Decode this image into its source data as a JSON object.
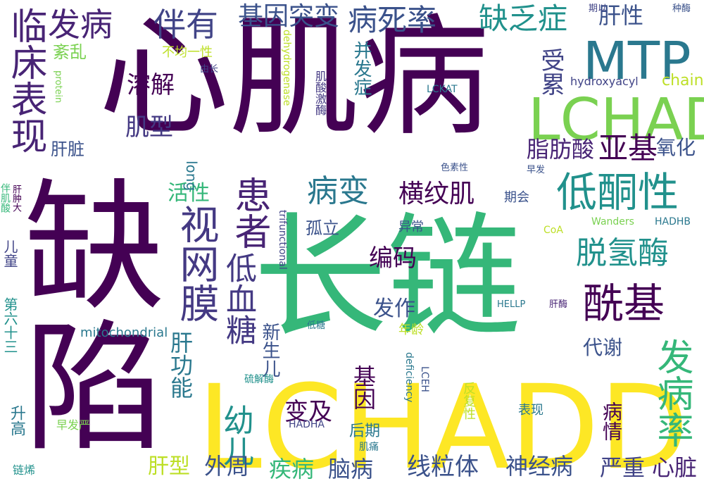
{
  "palette": {
    "purple": "#440154",
    "indigo": "#3b528b",
    "teal": "#21918c",
    "green": "#5ec962",
    "yellow": "#fde725"
  },
  "words": [
    {
      "text": "心肌病",
      "color": "#440154"
    },
    {
      "text": "长链",
      "color": "#35b779"
    },
    {
      "text": "LCHADD",
      "color": "#fde725"
    },
    {
      "text": "缺陷",
      "color": "#440154"
    },
    {
      "text": "临床表现",
      "color": "#482475"
    },
    {
      "text": "发病",
      "color": "#482475"
    },
    {
      "text": "伴有",
      "color": "#414487"
    },
    {
      "text": "基因突变",
      "color": "#3b528b"
    },
    {
      "text": "病死率",
      "color": "#3b528b"
    },
    {
      "text": "缺乏症",
      "color": "#21918c"
    },
    {
      "text": "肝性",
      "color": "#3b528b"
    },
    {
      "text": "MTP",
      "color": "#2a788e"
    },
    {
      "text": "LCHAD",
      "color": "#7ad151"
    },
    {
      "text": "紊乱",
      "color": "#7ad151"
    },
    {
      "text": "不均一性",
      "color": "#bddf26"
    },
    {
      "text": "由长",
      "color": "#414487"
    },
    {
      "text": "溶解",
      "color": "#440154"
    },
    {
      "text": "肌型",
      "color": "#443983"
    },
    {
      "text": "肝脏",
      "color": "#3b528b"
    },
    {
      "text": "受累",
      "color": "#414487"
    },
    {
      "text": "hydroxyacyl",
      "color": "#414487"
    },
    {
      "text": "chain",
      "color": "#bddf26"
    },
    {
      "text": "脂肪酸",
      "color": "#482475"
    },
    {
      "text": "亚基",
      "color": "#440154"
    },
    {
      "text": "氧化",
      "color": "#3b528b"
    },
    {
      "text": "低酮性",
      "color": "#21918c"
    },
    {
      "text": "病变",
      "color": "#2a788e"
    },
    {
      "text": "横纹肌",
      "color": "#440154"
    },
    {
      "text": "视网膜",
      "color": "#443983"
    },
    {
      "text": "患者",
      "color": "#482475"
    },
    {
      "text": "活性",
      "color": "#35b779"
    },
    {
      "text": "脱氢酶",
      "color": "#21918c"
    },
    {
      "text": "酰基",
      "color": "#440154"
    },
    {
      "text": "低血糖",
      "color": "#443983"
    },
    {
      "text": "孤立",
      "color": "#3b528b"
    },
    {
      "text": "编码",
      "color": "#440154"
    },
    {
      "text": "发病率",
      "color": "#35b779"
    },
    {
      "text": "发作",
      "color": "#3b528b"
    },
    {
      "text": "代谢",
      "color": "#3b528b"
    },
    {
      "text": "新生儿",
      "color": "#3b528b"
    },
    {
      "text": "肝功能",
      "color": "#2a788e"
    },
    {
      "text": "幼儿",
      "color": "#21918c"
    },
    {
      "text": "变及",
      "color": "#440154"
    },
    {
      "text": "基因",
      "color": "#440154"
    },
    {
      "text": "病情",
      "color": "#440154"
    },
    {
      "text": "外周",
      "color": "#3b528b"
    },
    {
      "text": "疾病",
      "color": "#35b779"
    },
    {
      "text": "脑病",
      "color": "#3b528b"
    },
    {
      "text": "线粒体",
      "color": "#3b528b"
    },
    {
      "text": "神经病",
      "color": "#3b528b"
    },
    {
      "text": "严重",
      "color": "#414487"
    },
    {
      "text": "心脏",
      "color": "#482475"
    },
    {
      "text": "肝型",
      "color": "#bddf26"
    },
    {
      "text": "第六十三",
      "color": "#21918c"
    },
    {
      "text": "儿童",
      "color": "#414487"
    },
    {
      "text": "伴肌酸",
      "color": "#35b779"
    },
    {
      "text": "肝肿大",
      "color": "#440154"
    },
    {
      "text": "升高",
      "color": "#2a788e"
    },
    {
      "text": "链烯",
      "color": "#21918c"
    },
    {
      "text": "早发严",
      "color": "#7ad151"
    },
    {
      "text": "HADHA",
      "color": "#414487"
    },
    {
      "text": "后期",
      "color": "#2a788e"
    },
    {
      "text": "肌痛",
      "color": "#2a788e"
    },
    {
      "text": "表现",
      "color": "#2a788e"
    },
    {
      "text": "反复性",
      "color": "#bddf26"
    },
    {
      "text": "deficiency",
      "color": "#2a788e"
    },
    {
      "text": "LCEH",
      "color": "#3b528b"
    },
    {
      "text": "硫解酶",
      "color": "#21918c"
    },
    {
      "text": "低糖",
      "color": "#2a788e"
    },
    {
      "text": "年龄",
      "color": "#bddf26"
    },
    {
      "text": "HELLP",
      "color": "#2a788e"
    },
    {
      "text": "肝酶",
      "color": "#482475"
    },
    {
      "text": "mitochondrial",
      "color": "#2a788e"
    },
    {
      "text": "trifunctional",
      "color": "#414487"
    },
    {
      "text": "CoA",
      "color": "#bddf26"
    },
    {
      "text": "Wanders",
      "color": "#7ad151"
    },
    {
      "text": "HADHB",
      "color": "#2a788e"
    },
    {
      "text": "异常",
      "color": "#3b528b"
    },
    {
      "text": "期会",
      "color": "#3b528b"
    },
    {
      "text": "早发",
      "color": "#3b528b"
    },
    {
      "text": "色素性",
      "color": "#3b528b"
    },
    {
      "text": "long",
      "color": "#2a788e"
    },
    {
      "text": "LCKAT",
      "color": "#2a788e"
    },
    {
      "text": "肌酸激酶",
      "color": "#443983"
    },
    {
      "text": "dehydrogenase",
      "color": "#bddf26"
    },
    {
      "text": "protein",
      "color": "#7ad151"
    },
    {
      "text": "并发症",
      "color": "#2a788e"
    },
    {
      "text": "期以",
      "color": "#414487"
    },
    {
      "text": "种酶",
      "color": "#3b528b"
    }
  ]
}
